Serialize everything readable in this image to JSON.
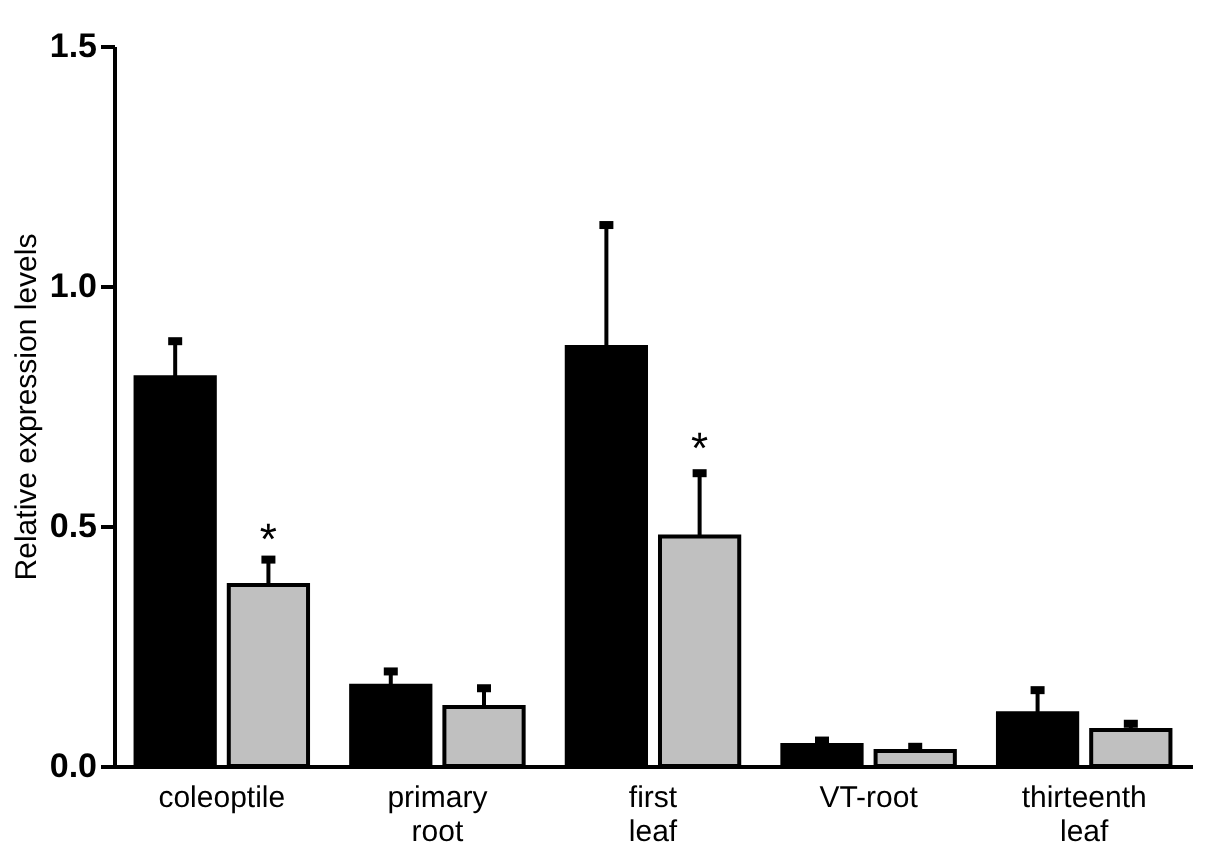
{
  "chart_data": {
    "type": "bar",
    "ylabel": "Relative expression levels",
    "categories": [
      "coleoptile",
      "primary root",
      "first leaf",
      "VT-root",
      "thirteenth leaf"
    ],
    "series": [
      {
        "color": "#000000",
        "values": [
          0.81,
          0.167,
          0.873,
          0.044,
          0.11
        ],
        "errors": [
          [
            0.81,
            0.885
          ],
          [
            0.167,
            0.197
          ],
          [
            0.873,
            1.127
          ],
          [
            0.044,
            0.053
          ],
          [
            0.11,
            0.158
          ]
        ]
      },
      {
        "color": "#c0c0c0",
        "values": [
          0.377,
          0.123,
          0.478,
          0.031,
          0.075
        ],
        "errors": [
          [
            0.377,
            0.43
          ],
          [
            0.123,
            0.162
          ],
          [
            0.478,
            0.61
          ],
          [
            0.031,
            0.04
          ],
          [
            0.075,
            0.088
          ]
        ]
      }
    ],
    "ylim": [
      0,
      1.5
    ],
    "yticks": [
      {
        "value": 0,
        "label": "0.0"
      },
      {
        "value": 0.5,
        "label": "0.5"
      },
      {
        "value": 1,
        "label": "1.0"
      },
      {
        "value": 1.5,
        "label": "1.5"
      }
    ],
    "grid": false,
    "legend": false,
    "annotations": [
      {
        "text": "*",
        "x": "coleoptile",
        "y": 0.47
      },
      {
        "text": "*",
        "x": "first leaf",
        "y": 0.66
      }
    ]
  }
}
